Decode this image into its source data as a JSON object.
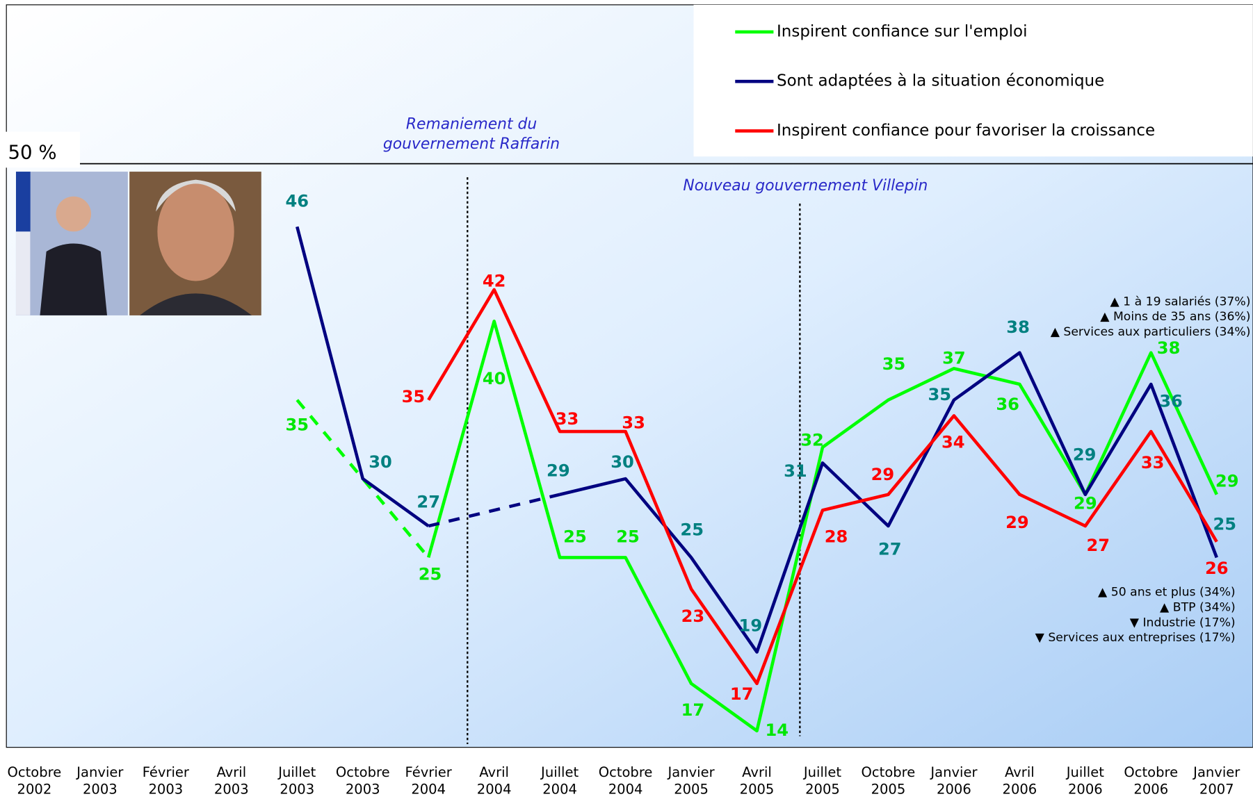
{
  "chart_data": {
    "type": "line",
    "categories": [
      "Octobre 2002",
      "Janvier 2003",
      "Février 2003",
      "Avril 2003",
      "Juillet 2003",
      "Octobre 2003",
      "Février 2004",
      "Avril 2004",
      "Juillet 2004",
      "Octobre 2004",
      "Janvier 2005",
      "Avril 2005",
      "Juillet 2005",
      "Octobre 2005",
      "Janvier 2006",
      "Avril 2006",
      "Juillet 2006",
      "Octobre 2006",
      "Janvier 2007"
    ],
    "series": [
      {
        "name": "Inspirent confiance sur l'emploi",
        "color": "#00ff00",
        "label_color": "#00e600",
        "values": [
          null,
          null,
          null,
          null,
          35,
          null,
          25,
          40,
          25,
          25,
          17,
          14,
          32,
          35,
          37,
          36,
          29,
          38,
          29
        ],
        "dashed_ranges": [
          [
            4,
            6
          ]
        ]
      },
      {
        "name": "Sont adaptées à la situation économique",
        "color": "#000080",
        "label_color": "#008080",
        "values": [
          null,
          null,
          null,
          null,
          46,
          30,
          27,
          null,
          29,
          30,
          25,
          19,
          31,
          27,
          35,
          38,
          29,
          36,
          25
        ],
        "dashed_ranges": [
          [
            6,
            8
          ]
        ]
      },
      {
        "name": "Inspirent confiance pour favoriser la croissance",
        "color": "#ff0000",
        "label_color": "#ff0000",
        "values": [
          null,
          null,
          null,
          null,
          null,
          null,
          35,
          42,
          33,
          33,
          23,
          17,
          28,
          29,
          34,
          29,
          27,
          33,
          26
        ],
        "dashed_ranges": []
      }
    ],
    "ylim": [
      13,
      50
    ],
    "yticks": [
      {
        "value": 50,
        "label": "50 %"
      }
    ],
    "annotations": {
      "raffarin": [
        "Remaniement du",
        "gouvernement Raffarin"
      ],
      "villepin": "Nouveau gouvernement Villepin"
    },
    "notes_top": [
      "▲ 1 à 19 salariés (37%)",
      "▲ Moins de 35 ans (36%)",
      "▲ Services aux particuliers (34%)"
    ],
    "notes_bottom": [
      "▲ 50 ans et plus (34%)",
      "▲ BTP (34%)",
      "▼ Industrie (17%)",
      "▼ Services aux entreprises (17%)"
    ]
  }
}
